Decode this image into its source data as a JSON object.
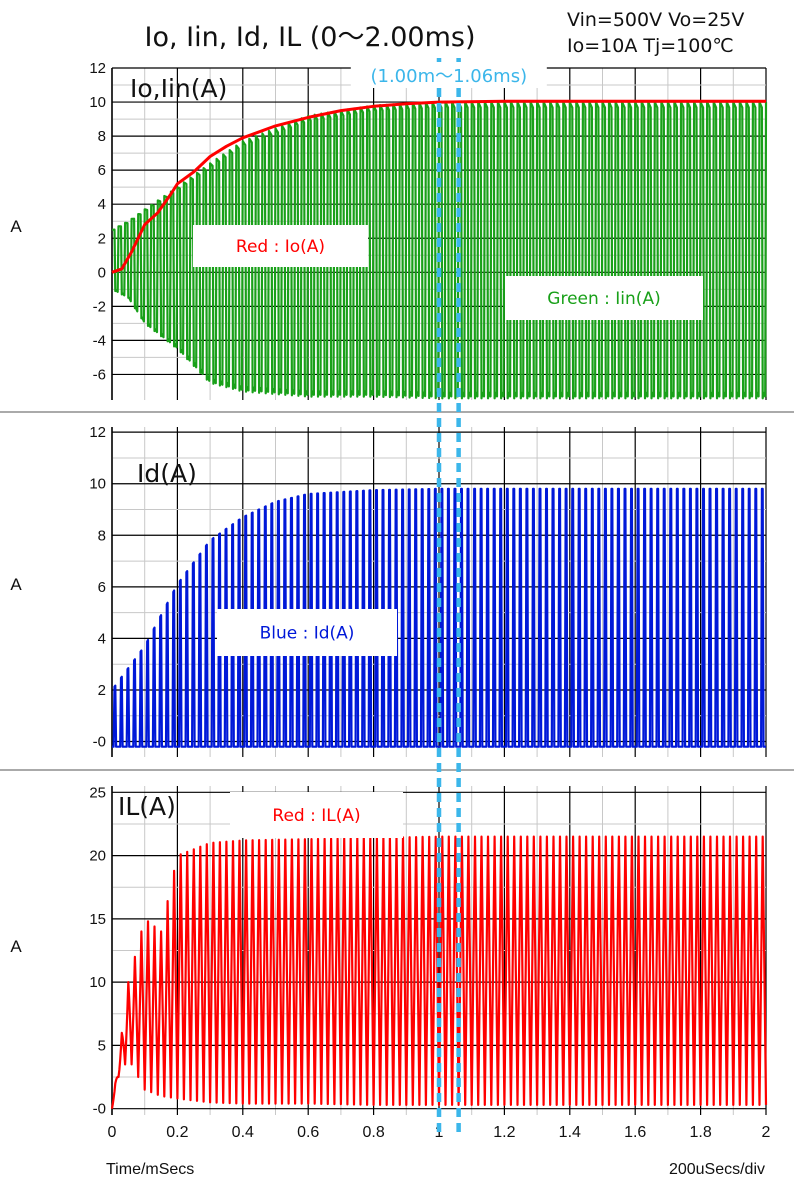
{
  "title": "Io, Iin, Id, IL (0～2.00ms)",
  "conditions": {
    "line1": "Vin=500V Vo=25V",
    "line2": "Io=10A Tj=100℃"
  },
  "highlight": {
    "label": "(1.00m～1.06ms)",
    "range_ms": [
      1.0,
      1.06
    ],
    "color": "#3bb6ea"
  },
  "footer": {
    "xlabel": "Time/mSecs",
    "timebase": "200uSecs/div"
  },
  "chart_data": [
    {
      "type": "line",
      "panel_label": "Io,Iin(A)",
      "ylabel": "A",
      "ylim": [
        -7.5,
        12
      ],
      "yticks": [
        12,
        10,
        8,
        6,
        4,
        2,
        0,
        -2,
        -4,
        -6
      ],
      "ytick_labels": [
        "12",
        "10",
        "8",
        "6",
        "4",
        "2",
        "0",
        "-2",
        "-4",
        "-6"
      ],
      "xlim": [
        0,
        2
      ],
      "grid": true,
      "series": [
        {
          "name": "Red : Io(A)",
          "color": "#ff0000",
          "x": [
            0,
            0.03,
            0.06,
            0.1,
            0.14,
            0.18,
            0.2,
            0.25,
            0.3,
            0.35,
            0.4,
            0.5,
            0.6,
            0.7,
            0.8,
            0.9,
            1.0,
            1.2,
            1.4,
            1.6,
            1.8,
            2.0
          ],
          "y": [
            0,
            0.2,
            1.2,
            2.8,
            3.5,
            4.6,
            5.2,
            5.9,
            6.8,
            7.4,
            7.9,
            8.6,
            9.1,
            9.5,
            9.75,
            9.9,
            10.0,
            10.05,
            10.05,
            10.05,
            10.05,
            10.05
          ]
        },
        {
          "name": "Green : Iin(A)",
          "color": "#19a019",
          "waveform": "switching",
          "cycles": 100,
          "envelope_x": [
            0,
            0.05,
            0.1,
            0.2,
            0.3,
            0.4,
            0.6,
            0.8,
            1.0,
            2.0
          ],
          "envelope_max": [
            2.5,
            3.0,
            3.7,
            5.0,
            6.4,
            7.7,
            9.2,
            9.8,
            10.0,
            10.0
          ],
          "envelope_min": [
            -1.0,
            -1.5,
            -3.0,
            -4.5,
            -6.5,
            -7.0,
            -7.3,
            -7.3,
            -7.4,
            -7.4
          ]
        }
      ]
    },
    {
      "type": "line",
      "panel_label": "Id(A)",
      "ylabel": "A",
      "ylim": [
        -0.6,
        12.2
      ],
      "yticks": [
        12,
        10,
        8,
        6,
        4,
        2,
        0
      ],
      "ytick_labels": [
        "12",
        "10",
        "8",
        "6",
        "4",
        "2",
        "-0"
      ],
      "xlim": [
        0,
        2
      ],
      "grid": true,
      "series": [
        {
          "name": "Blue : Id(A)",
          "color": "#0018d8",
          "waveform": "pulses",
          "cycles": 100,
          "envelope_x": [
            0,
            0.1,
            0.2,
            0.3,
            0.4,
            0.5,
            0.6,
            0.8,
            1.0,
            2.0
          ],
          "envelope_max": [
            2.0,
            3.7,
            6.1,
            7.8,
            8.7,
            9.3,
            9.6,
            9.75,
            9.8,
            9.8
          ],
          "envelope_min": [
            -0.2,
            -0.2,
            -0.2,
            -0.2,
            -0.2,
            -0.2,
            -0.2,
            -0.2,
            -0.2,
            -0.2
          ]
        }
      ]
    },
    {
      "type": "line",
      "panel_label": "IL(A)",
      "ylabel": "A",
      "ylim": [
        -0.5,
        25.5
      ],
      "yticks": [
        25,
        20,
        15,
        10,
        5,
        0
      ],
      "ytick_labels": [
        "25",
        "20",
        "15",
        "10",
        "5",
        "-0"
      ],
      "xlim": [
        0,
        2
      ],
      "xticks": [
        0,
        0.2,
        0.4,
        0.6,
        0.8,
        1.0,
        1.2,
        1.4,
        1.6,
        1.8,
        2.0
      ],
      "xtick_labels": [
        "0",
        "0.2",
        "0.4",
        "0.6",
        "0.8",
        "1",
        "1.2",
        "1.4",
        "1.6",
        "1.8",
        "2"
      ],
      "grid": true,
      "series": [
        {
          "name": "Red : IL(A)",
          "color": "#ff0000",
          "waveform": "triangle",
          "cycles": 100,
          "envelope_x": [
            0,
            0.02,
            0.05,
            0.1,
            0.15,
            0.2,
            0.3,
            0.4,
            0.6,
            0.8,
            1.0,
            2.0
          ],
          "envelope_max": [
            0,
            4.0,
            10.0,
            15.0,
            14.0,
            20.0,
            21.0,
            21.2,
            21.3,
            21.4,
            21.5,
            21.5
          ],
          "envelope_min": [
            0,
            2.5,
            4.0,
            1.5,
            1.0,
            0.8,
            0.5,
            0.4,
            0.4,
            0.3,
            0.3,
            0.3
          ]
        }
      ]
    }
  ]
}
